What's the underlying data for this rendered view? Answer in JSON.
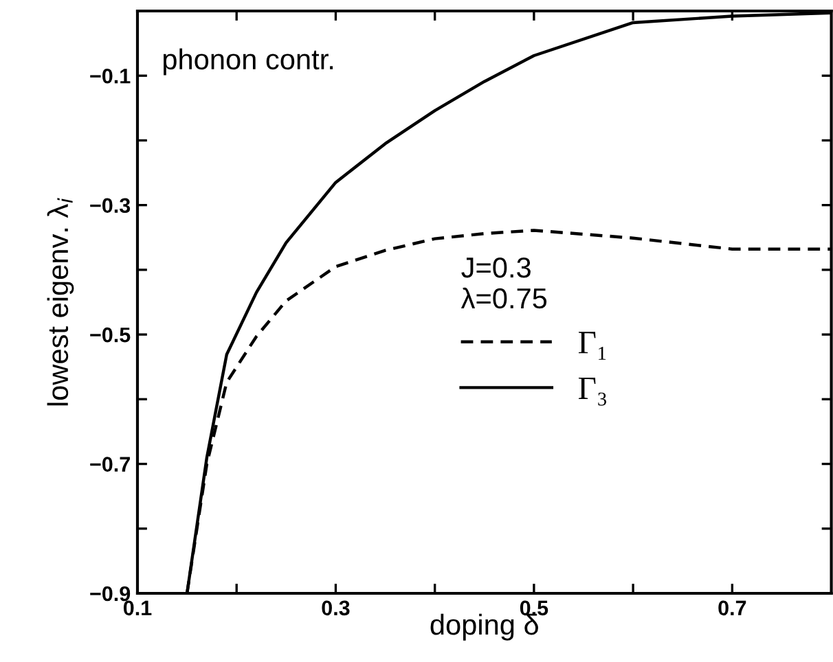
{
  "chart_data": {
    "type": "line",
    "xlabel": "doping δ",
    "ylabel": "lowest eigenv. λ$_{i}$",
    "annotations": [
      "phonon contr."
    ],
    "legend_title": "J=0.3\nλ=0.75",
    "legend": "center right",
    "grid": false,
    "marker": "none",
    "xlim": [
      0.1,
      0.8
    ],
    "ylim": [
      -0.9,
      0
    ],
    "xticks": [
      0.1,
      {
        "value": 0.2,
        "label": null
      },
      0.3,
      {
        "value": 0.4,
        "label": null
      },
      0.5,
      {
        "value": 0.6,
        "label": null
      },
      0.7
    ],
    "yticks": [
      -0.9,
      {
        "value": -0.8,
        "label": null
      },
      -0.7,
      {
        "value": -0.6,
        "label": null
      },
      -0.5,
      {
        "value": -0.4,
        "label": null
      },
      -0.3,
      {
        "value": -0.2,
        "label": null
      },
      -0.1
    ],
    "series": [
      {
        "name": "Γ₁",
        "color": "#000000",
        "line_style": "dashed",
        "x": [
          0.15,
          0.17,
          0.19,
          0.22,
          0.25,
          0.3,
          0.35,
          0.4,
          0.45,
          0.5,
          0.6,
          0.7,
          0.8
        ],
        "values": [
          -0.9,
          -0.7,
          -0.574,
          -0.503,
          -0.448,
          -0.395,
          -0.37,
          -0.352,
          -0.344,
          -0.339,
          -0.351,
          -0.368,
          -0.368
        ]
      },
      {
        "name": "Γ₃",
        "color": "#000000",
        "line_style": "solid",
        "x": [
          0.15,
          0.17,
          0.19,
          0.22,
          0.25,
          0.3,
          0.35,
          0.4,
          0.45,
          0.5,
          0.6,
          0.7,
          0.8
        ],
        "values": [
          -0.9,
          -0.69,
          -0.531,
          -0.435,
          -0.358,
          -0.265,
          -0.205,
          -0.154,
          -0.109,
          -0.069,
          -0.018,
          -0.008,
          -0.003
        ]
      }
    ]
  }
}
